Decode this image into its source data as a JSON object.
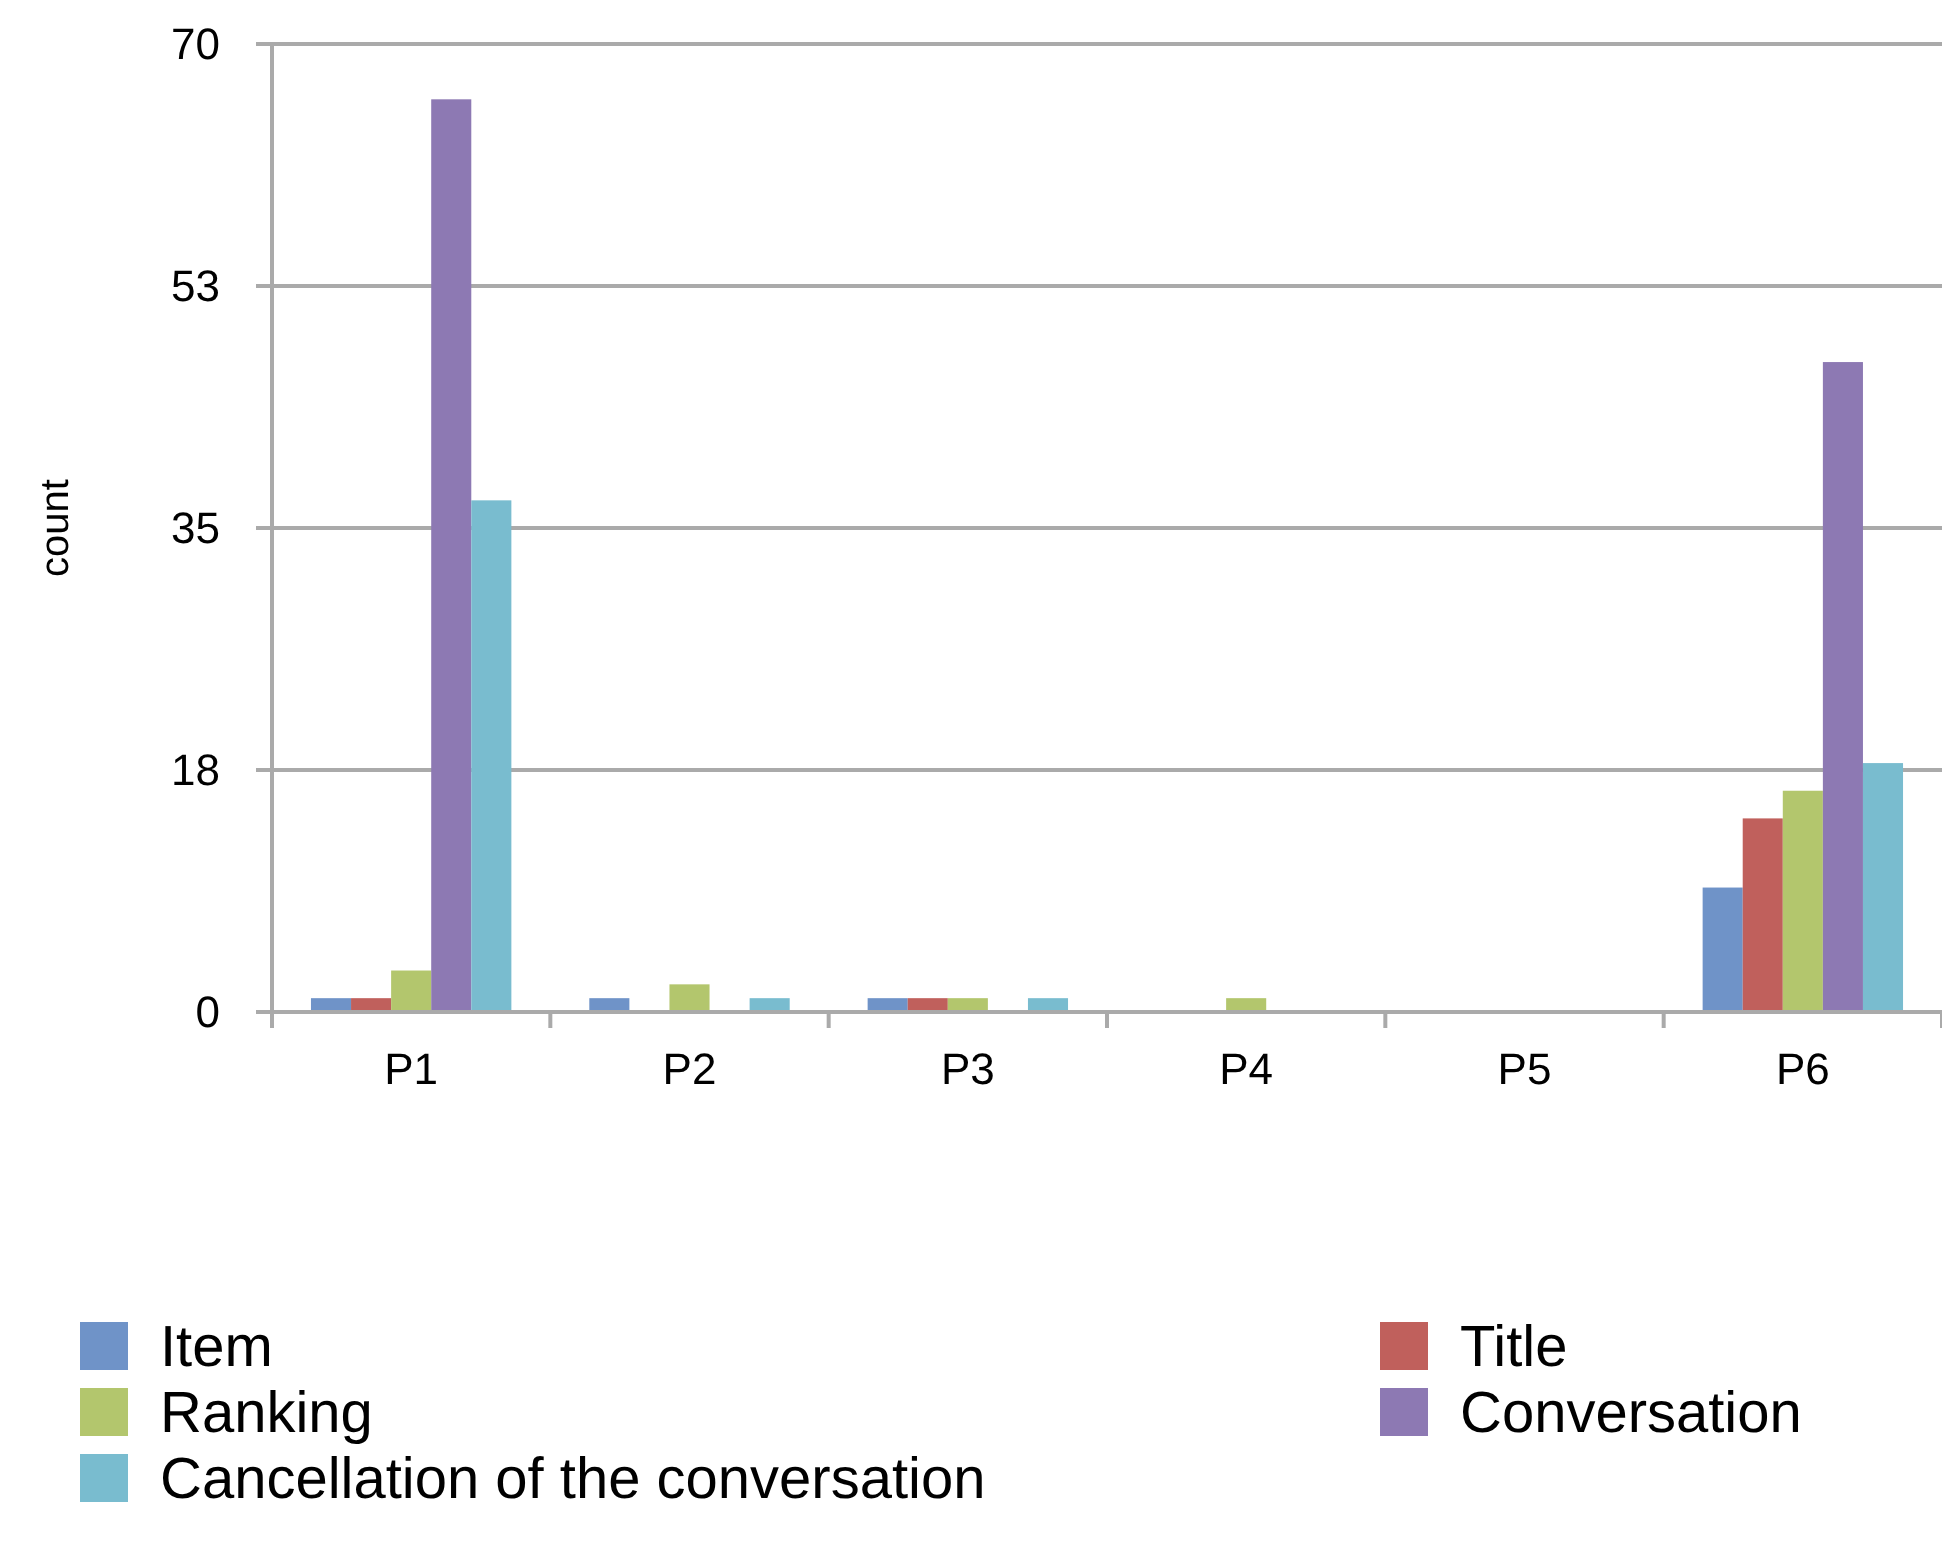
{
  "chart_data": {
    "type": "bar",
    "ylabel": "count",
    "categories": [
      "P1",
      "P2",
      "P3",
      "P4",
      "P5",
      "P6"
    ],
    "series": [
      {
        "name": "Item",
        "color": "#6f93c8",
        "values": [
          1,
          1,
          1,
          0,
          0,
          9
        ]
      },
      {
        "name": "Title",
        "color": "#c0605c",
        "values": [
          1,
          0,
          1,
          0,
          0,
          14
        ]
      },
      {
        "name": "Ranking",
        "color": "#b3c66d",
        "values": [
          3,
          2,
          1,
          1,
          0,
          16
        ]
      },
      {
        "name": "Conversation",
        "color": "#8d79b3",
        "values": [
          66,
          0,
          0,
          0,
          0,
          47
        ]
      },
      {
        "name": "Cancellation of the conversation",
        "color": "#79bccf",
        "values": [
          37,
          1,
          1,
          0,
          0,
          18
        ]
      }
    ],
    "ylim": [
      0,
      70
    ],
    "yticks": [
      0,
      {
        "value": 17.5,
        "label": "18"
      },
      35,
      {
        "value": 52.5,
        "label": "53"
      },
      70
    ],
    "grid": "y",
    "legend": "bottom"
  }
}
